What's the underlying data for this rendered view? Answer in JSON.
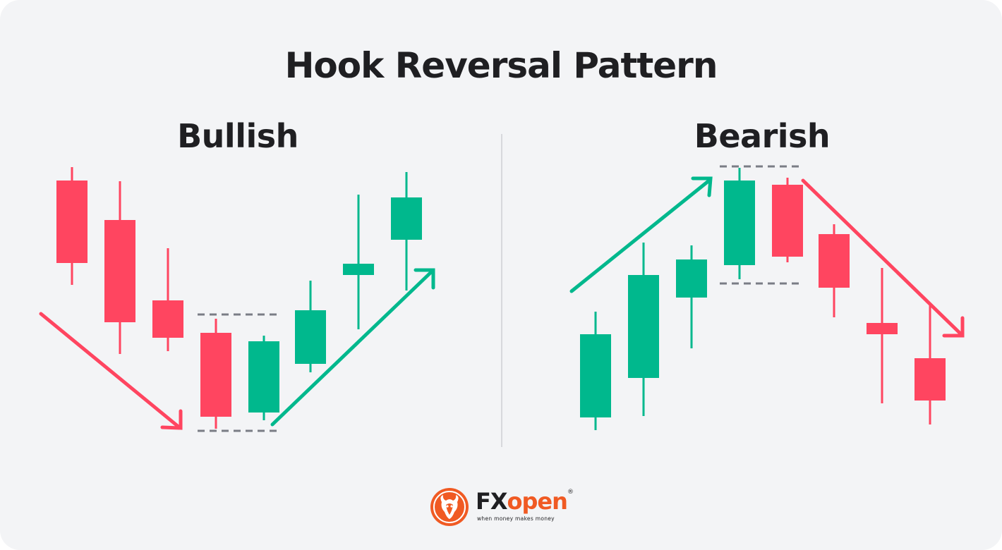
{
  "title": "Hook Reversal Pattern",
  "panels": {
    "bullish": {
      "label": "Bullish"
    },
    "bearish": {
      "label": "Bearish"
    }
  },
  "colors": {
    "bullish": "#00b88d",
    "bearish": "#ff4560",
    "guide": "#7a7d85",
    "divider": "#d7d8dc",
    "brand_orange": "#f05a23",
    "text": "#1f1f22"
  },
  "logo": {
    "brand_prefix": "FX",
    "brand_suffix": "open",
    "registered": "®",
    "tagline": "when money makes money"
  }
}
